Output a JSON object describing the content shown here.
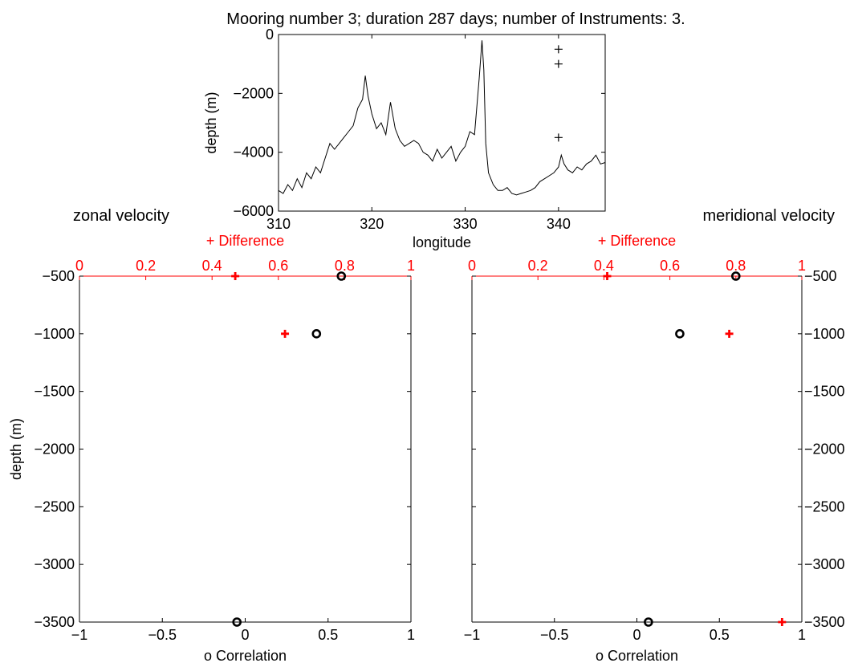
{
  "figure": {
    "title": "Mooring number 3; duration 287 days; number of Instruments: 3."
  },
  "chart_data": [
    {
      "type": "line",
      "id": "bathymetry",
      "xlabel": "longitude",
      "ylabel": "depth (m)",
      "xlim": [
        310,
        345
      ],
      "ylim": [
        -6000,
        0
      ],
      "xticks": [
        310,
        320,
        330,
        340
      ],
      "yticks": [
        0,
        -2000,
        -4000,
        -6000
      ],
      "grid": false,
      "series": [
        {
          "x": [
            310,
            310.5,
            311,
            311.5,
            312,
            312.5,
            313,
            313.5,
            314,
            314.5,
            315,
            315.5,
            316,
            316.5,
            317,
            317.5,
            318,
            318.5,
            319,
            319.3,
            319.6,
            320,
            320.5,
            321,
            321.5,
            322,
            322.5,
            323,
            323.5,
            324,
            324.5,
            325,
            325.5,
            326,
            326.5,
            327,
            327.5,
            328,
            328.5,
            329,
            329.5,
            330,
            330.5,
            331,
            331.5,
            331.8,
            332,
            332.2,
            332.5,
            333,
            333.5,
            334,
            334.5,
            335,
            335.5,
            336,
            336.5,
            337,
            337.5,
            338,
            338.5,
            339,
            339.5,
            340,
            340.3,
            340.6,
            341,
            341.5,
            342,
            342.5,
            343,
            343.5,
            344,
            344.5,
            345
          ],
          "y": [
            -5300,
            -5400,
            -5100,
            -5300,
            -4900,
            -5200,
            -4700,
            -4900,
            -4500,
            -4700,
            -4200,
            -3700,
            -3900,
            -3700,
            -3500,
            -3300,
            -3100,
            -2500,
            -2200,
            -1400,
            -2100,
            -2700,
            -3200,
            -3000,
            -3400,
            -2300,
            -3200,
            -3600,
            -3800,
            -3700,
            -3600,
            -3700,
            -4000,
            -4100,
            -4300,
            -3900,
            -4200,
            -4000,
            -3800,
            -4300,
            -4000,
            -3800,
            -3300,
            -3400,
            -1500,
            -200,
            -1200,
            -3700,
            -4700,
            -5100,
            -5300,
            -5300,
            -5200,
            -5400,
            -5450,
            -5400,
            -5350,
            -5300,
            -5200,
            -5000,
            -4900,
            -4800,
            -4700,
            -4500,
            -4100,
            -4400,
            -4600,
            -4700,
            -4500,
            -4600,
            -4400,
            -4300,
            -4100,
            -4400,
            -4350
          ]
        }
      ],
      "instrument_markers": {
        "marker": "+",
        "x": [
          340,
          340,
          340
        ],
        "y": [
          -500,
          -1000,
          -3500
        ]
      }
    },
    {
      "type": "scatter",
      "id": "zonal",
      "title": "zonal velocity",
      "xlabel": "o Correlation",
      "ylabel": "depth (m)",
      "xlim": [
        -1,
        1
      ],
      "xticks": [
        -1,
        -0.5,
        0,
        0.5,
        1
      ],
      "ylim": [
        -3500,
        -500
      ],
      "yticks": [
        -500,
        -1000,
        -1500,
        -2000,
        -2500,
        -3000,
        -3500
      ],
      "top_axis": {
        "label": "+ Difference",
        "lim": [
          0,
          1
        ],
        "ticks": [
          0,
          0.2,
          0.4,
          0.6,
          0.8,
          1
        ],
        "color": "#ff0000"
      },
      "series": [
        {
          "name": "o Correlation",
          "marker": "o",
          "color": "#000000",
          "axis": "bottom",
          "x": [
            0.58,
            0.43,
            -0.05
          ],
          "y": [
            -500,
            -1000,
            -3500
          ]
        },
        {
          "name": "+ Difference",
          "marker": "+",
          "color": "#ff0000",
          "axis": "top",
          "x": [
            0.47,
            0.62
          ],
          "y": [
            -500,
            -1000
          ]
        }
      ]
    },
    {
      "type": "scatter",
      "id": "meridional",
      "title": "meridional velocity",
      "xlabel": "o Correlation",
      "ylabel": "",
      "xlim": [
        -1,
        1
      ],
      "xticks": [
        -1,
        -0.5,
        0,
        0.5,
        1
      ],
      "ylim": [
        -3500,
        -500
      ],
      "yticks": [
        -500,
        -1000,
        -1500,
        -2000,
        -2500,
        -3000,
        -3500
      ],
      "yaxis_side": "right",
      "top_axis": {
        "label": "+ Difference",
        "lim": [
          0,
          1
        ],
        "ticks": [
          0,
          0.2,
          0.4,
          0.6,
          0.8,
          1
        ],
        "color": "#ff0000"
      },
      "series": [
        {
          "name": "o Correlation",
          "marker": "o",
          "color": "#000000",
          "axis": "bottom",
          "x": [
            0.6,
            0.26,
            0.07
          ],
          "y": [
            -500,
            -1000,
            -3500
          ]
        },
        {
          "name": "+ Difference",
          "marker": "+",
          "color": "#ff0000",
          "axis": "top",
          "x": [
            0.41,
            0.78,
            0.94
          ],
          "y": [
            -500,
            -1000,
            -3500
          ]
        }
      ]
    }
  ]
}
